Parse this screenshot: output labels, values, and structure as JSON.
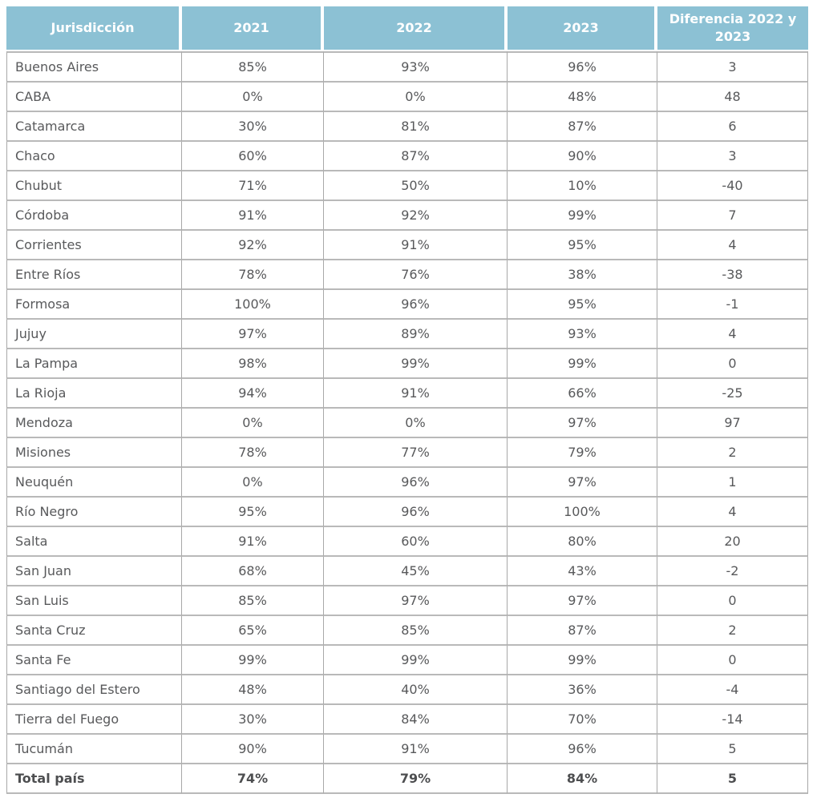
{
  "table": {
    "columns": [
      "Jurisdicción",
      "2021",
      "2022",
      "2023",
      "Diferencia 2022 y 2023"
    ],
    "rows": [
      [
        "Buenos Aires",
        "85%",
        "93%",
        "96%",
        "3"
      ],
      [
        "CABA",
        "0%",
        "0%",
        "48%",
        "48"
      ],
      [
        "Catamarca",
        "30%",
        "81%",
        "87%",
        "6"
      ],
      [
        "Chaco",
        "60%",
        "87%",
        "90%",
        "3"
      ],
      [
        "Chubut",
        "71%",
        "50%",
        "10%",
        "-40"
      ],
      [
        "Córdoba",
        "91%",
        "92%",
        "99%",
        "7"
      ],
      [
        "Corrientes",
        "92%",
        "91%",
        "95%",
        "4"
      ],
      [
        "Entre Ríos",
        "78%",
        "76%",
        "38%",
        "-38"
      ],
      [
        "Formosa",
        "100%",
        "96%",
        "95%",
        "-1"
      ],
      [
        "Jujuy",
        "97%",
        "89%",
        "93%",
        "4"
      ],
      [
        "La Pampa",
        "98%",
        "99%",
        "99%",
        "0"
      ],
      [
        "La Rioja",
        "94%",
        "91%",
        "66%",
        "-25"
      ],
      [
        "Mendoza",
        "0%",
        "0%",
        "97%",
        "97"
      ],
      [
        "Misiones",
        "78%",
        "77%",
        "79%",
        "2"
      ],
      [
        "Neuquén",
        "0%",
        "96%",
        "97%",
        "1"
      ],
      [
        "Río Negro",
        "95%",
        "96%",
        "100%",
        "4"
      ],
      [
        "Salta",
        "91%",
        "60%",
        "80%",
        "20"
      ],
      [
        "San Juan",
        "68%",
        "45%",
        "43%",
        "-2"
      ],
      [
        "San Luis",
        "85%",
        "97%",
        "97%",
        "0"
      ],
      [
        "Santa Cruz",
        "65%",
        "85%",
        "87%",
        "2"
      ],
      [
        "Santa Fe",
        "99%",
        "99%",
        "99%",
        "0"
      ],
      [
        "Santiago del Estero",
        "48%",
        "40%",
        "36%",
        "-4"
      ],
      [
        "Tierra del Fuego",
        "30%",
        "84%",
        "70%",
        "-14"
      ],
      [
        "Tucumán",
        "90%",
        "91%",
        "96%",
        "5"
      ]
    ],
    "total": [
      "Total país",
      "74%",
      "79%",
      "84%",
      "5"
    ]
  },
  "colors": {
    "header_bg": "#8cc1d4",
    "header_text": "#ffffff",
    "body_text": "#58595b",
    "grid_vertical": "#a8a8a8",
    "grid_horizontal": "#b9b9b9"
  },
  "chart_data": {
    "type": "table",
    "title": "",
    "columns": [
      "Jurisdicción",
      "2021",
      "2022",
      "2023",
      "Diferencia 2022 y 2023"
    ],
    "categories": [
      "Buenos Aires",
      "CABA",
      "Catamarca",
      "Chaco",
      "Chubut",
      "Córdoba",
      "Corrientes",
      "Entre Ríos",
      "Formosa",
      "Jujuy",
      "La Pampa",
      "La Rioja",
      "Mendoza",
      "Misiones",
      "Neuquén",
      "Río Negro",
      "Salta",
      "San Juan",
      "San Luis",
      "Santa Cruz",
      "Santa Fe",
      "Santiago del Estero",
      "Tierra del Fuego",
      "Tucumán"
    ],
    "series": [
      {
        "name": "2021",
        "unit": "%",
        "values": [
          85,
          0,
          30,
          60,
          71,
          91,
          92,
          78,
          100,
          97,
          98,
          94,
          0,
          78,
          0,
          95,
          91,
          68,
          85,
          65,
          99,
          48,
          30,
          90
        ]
      },
      {
        "name": "2022",
        "unit": "%",
        "values": [
          93,
          0,
          81,
          87,
          50,
          92,
          91,
          76,
          96,
          89,
          99,
          91,
          0,
          77,
          96,
          96,
          60,
          45,
          97,
          85,
          99,
          40,
          84,
          91
        ]
      },
      {
        "name": "2023",
        "unit": "%",
        "values": [
          96,
          48,
          87,
          90,
          10,
          99,
          95,
          38,
          95,
          93,
          99,
          66,
          97,
          79,
          97,
          100,
          80,
          43,
          97,
          87,
          99,
          36,
          70,
          96
        ]
      },
      {
        "name": "Diferencia 2022 y 2023",
        "unit": "pp",
        "values": [
          3,
          48,
          6,
          3,
          -40,
          7,
          4,
          -38,
          -1,
          4,
          0,
          -25,
          97,
          2,
          1,
          4,
          20,
          -2,
          0,
          2,
          0,
          -4,
          -14,
          5
        ]
      }
    ],
    "total_row": {
      "name": "Total país",
      "values_2021_2022_2023_diff": [
        74,
        79,
        84,
        5
      ]
    },
    "legend_position": "none",
    "grid": true
  }
}
